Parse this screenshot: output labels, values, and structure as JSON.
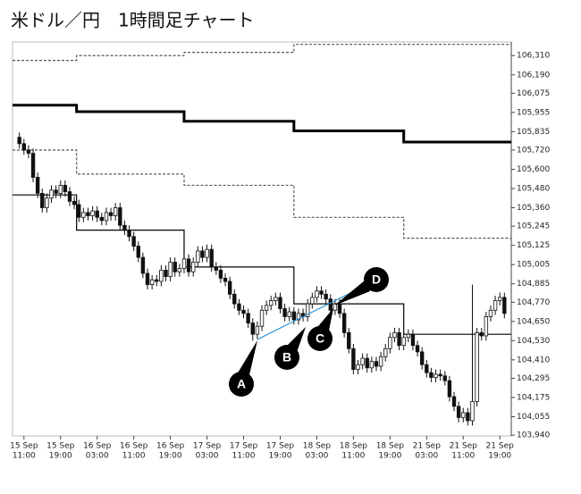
{
  "chart_data": {
    "type": "candlestick",
    "title": "米ドル／円　1時間足チャート",
    "open": [
      105.8,
      105.76,
      105.72,
      105.7,
      105.55,
      105.45,
      105.36,
      105.42,
      105.47,
      105.45,
      105.5,
      105.46,
      105.4,
      105.38,
      105.3,
      105.33,
      105.31,
      105.34,
      105.3,
      105.28,
      105.33,
      105.31,
      105.36,
      105.25,
      105.22,
      105.18,
      105.12,
      105.05,
      104.95,
      104.88,
      104.91,
      104.9,
      104.97,
      104.93,
      105.02,
      104.96,
      104.98,
      105.04,
      104.96,
      105.02,
      105.09,
      105.05,
      105.1,
      104.99,
      104.97,
      104.92,
      104.9,
      104.82,
      104.76,
      104.72,
      104.7,
      104.64,
      104.57,
      104.62,
      104.72,
      104.75,
      104.78,
      104.8,
      104.73,
      104.68,
      104.71,
      104.66,
      104.7,
      104.68,
      104.76,
      104.8,
      104.84,
      104.82,
      104.79,
      104.72,
      104.76,
      104.7,
      104.58,
      104.48,
      104.35,
      104.38,
      104.42,
      104.36,
      104.4,
      104.37,
      104.43,
      104.48,
      104.55,
      104.58,
      104.5,
      104.55,
      104.57,
      104.5,
      104.46,
      104.38,
      104.33,
      104.3,
      104.32,
      104.31,
      104.28,
      104.18,
      104.12,
      104.05,
      104.08,
      104.03,
      104.15,
      104.58,
      104.56,
      104.68,
      104.72,
      104.78,
      104.8
    ],
    "high": [
      105.83,
      105.79,
      105.75,
      105.73,
      105.58,
      105.48,
      105.45,
      105.5,
      105.5,
      105.53,
      105.53,
      105.49,
      105.43,
      105.41,
      105.36,
      105.36,
      105.37,
      105.37,
      105.33,
      105.36,
      105.36,
      105.39,
      105.39,
      105.28,
      105.25,
      105.21,
      105.15,
      105.08,
      104.98,
      104.94,
      104.94,
      105.0,
      105.0,
      105.05,
      105.05,
      105.01,
      105.07,
      105.07,
      105.05,
      105.12,
      105.12,
      105.13,
      105.13,
      105.02,
      105.0,
      104.95,
      104.93,
      104.85,
      104.79,
      104.75,
      104.73,
      104.67,
      104.65,
      104.75,
      104.78,
      104.81,
      104.83,
      104.83,
      104.76,
      104.74,
      104.74,
      104.73,
      104.73,
      104.79,
      104.83,
      104.87,
      104.87,
      104.85,
      104.82,
      104.79,
      104.79,
      104.73,
      104.61,
      104.51,
      104.41,
      104.45,
      104.45,
      104.43,
      104.43,
      104.46,
      104.51,
      104.58,
      104.61,
      104.61,
      104.58,
      104.6,
      104.6,
      104.53,
      104.49,
      104.41,
      104.36,
      104.35,
      104.35,
      104.34,
      104.31,
      104.21,
      104.15,
      104.11,
      104.11,
      104.88,
      104.61,
      104.61,
      104.71,
      104.75,
      104.81,
      104.83,
      104.83
    ],
    "low": [
      105.73,
      105.69,
      105.67,
      105.52,
      105.42,
      105.33,
      105.33,
      105.39,
      105.42,
      105.42,
      105.43,
      105.37,
      105.35,
      105.27,
      105.27,
      105.28,
      105.28,
      105.27,
      105.25,
      105.25,
      105.28,
      105.28,
      105.22,
      105.19,
      105.15,
      105.09,
      105.02,
      104.92,
      104.85,
      104.85,
      104.87,
      104.87,
      104.9,
      104.9,
      104.93,
      104.93,
      104.95,
      104.93,
      104.93,
      104.99,
      105.02,
      105.02,
      104.96,
      104.94,
      104.89,
      104.87,
      104.79,
      104.73,
      104.69,
      104.67,
      104.61,
      104.53,
      104.54,
      104.59,
      104.69,
      104.72,
      104.75,
      104.7,
      104.65,
      104.65,
      104.63,
      104.63,
      104.65,
      104.65,
      104.73,
      104.77,
      104.79,
      104.76,
      104.69,
      104.69,
      104.67,
      104.55,
      104.45,
      104.32,
      104.32,
      104.35,
      104.33,
      104.33,
      104.34,
      104.34,
      104.4,
      104.45,
      104.52,
      104.47,
      104.47,
      104.52,
      104.47,
      104.43,
      104.35,
      104.3,
      104.27,
      104.27,
      104.28,
      104.25,
      104.15,
      104.09,
      104.02,
      104.02,
      104.0,
      104.0,
      104.12,
      104.53,
      104.53,
      104.65,
      104.69,
      104.75,
      104.67
    ],
    "close": [
      105.76,
      105.72,
      105.7,
      105.55,
      105.45,
      105.36,
      105.42,
      105.47,
      105.45,
      105.5,
      105.46,
      105.4,
      105.38,
      105.3,
      105.33,
      105.31,
      105.34,
      105.3,
      105.28,
      105.33,
      105.31,
      105.36,
      105.25,
      105.22,
      105.18,
      105.12,
      105.05,
      104.95,
      104.88,
      104.91,
      104.9,
      104.97,
      104.93,
      105.02,
      104.96,
      104.98,
      105.04,
      104.96,
      105.02,
      105.09,
      105.05,
      105.1,
      104.99,
      104.97,
      104.92,
      104.9,
      104.82,
      104.76,
      104.72,
      104.7,
      104.64,
      104.57,
      104.62,
      104.72,
      104.75,
      104.78,
      104.8,
      104.73,
      104.68,
      104.71,
      104.66,
      104.7,
      104.68,
      104.76,
      104.8,
      104.84,
      104.82,
      104.79,
      104.72,
      104.76,
      104.7,
      104.58,
      104.48,
      104.35,
      104.38,
      104.42,
      104.36,
      104.4,
      104.37,
      104.43,
      104.48,
      104.55,
      104.58,
      104.5,
      104.55,
      104.57,
      104.5,
      104.46,
      104.38,
      104.33,
      104.3,
      104.32,
      104.31,
      104.28,
      104.18,
      104.12,
      104.05,
      104.08,
      104.03,
      104.15,
      104.58,
      104.56,
      104.68,
      104.72,
      104.78,
      104.8,
      104.7
    ],
    "up_color": "#ffffff",
    "down_color": "#111111",
    "lines": [
      {
        "style": "dashed",
        "color": "#555555",
        "x": [
          -1.5,
          12.5,
          36,
          60,
          84,
          107.5
        ],
        "values": [
          106.28,
          106.31,
          106.33,
          106.38,
          106.38,
          106.38
        ]
      },
      {
        "style": "thick",
        "color": "#000000",
        "x": [
          -1.5,
          12.5,
          36,
          60,
          84,
          107.5
        ],
        "values": [
          106.0,
          105.96,
          105.9,
          105.84,
          105.77,
          105.77
        ]
      },
      {
        "style": "dashed",
        "color": "#555555",
        "x": [
          -1.5,
          12.5,
          36,
          60,
          84,
          107.5
        ],
        "values": [
          105.72,
          105.57,
          105.5,
          105.3,
          105.17,
          105.17
        ]
      },
      {
        "style": "solid",
        "color": "#000000",
        "x": [
          -1.5,
          12.5,
          36,
          60,
          84,
          107.5
        ],
        "values": [
          105.44,
          105.22,
          104.99,
          104.76,
          104.57,
          104.57
        ]
      }
    ],
    "xlim": [
      -1.5,
      107.5
    ],
    "xticks": [
      {
        "value": 1,
        "label": [
          "15 Sep",
          "11:00"
        ]
      },
      {
        "value": 9,
        "label": [
          "15 Sep",
          "19:00"
        ]
      },
      {
        "value": 17,
        "label": [
          "16 Sep",
          "03:00"
        ]
      },
      {
        "value": 25,
        "label": [
          "16 Sep",
          "11:00"
        ]
      },
      {
        "value": 33,
        "label": [
          "16 Sep",
          "19:00"
        ]
      },
      {
        "value": 41,
        "label": [
          "17 Sep",
          "03:00"
        ]
      },
      {
        "value": 49,
        "label": [
          "17 Sep",
          "11:00"
        ]
      },
      {
        "value": 57,
        "label": [
          "17 Sep",
          "19:00"
        ]
      },
      {
        "value": 65,
        "label": [
          "18 Sep",
          "03:00"
        ]
      },
      {
        "value": 73,
        "label": [
          "18 Sep",
          "11:00"
        ]
      },
      {
        "value": 81,
        "label": [
          "18 Sep",
          "19:00"
        ]
      },
      {
        "value": 89,
        "label": [
          "21 Sep",
          "03:00"
        ]
      },
      {
        "value": 97,
        "label": [
          "21 Sep",
          "11:00"
        ]
      },
      {
        "value": 105,
        "label": [
          "21 Sep",
          "19:00"
        ]
      }
    ],
    "ylim": [
      103.935,
      106.395
    ],
    "yticks": [
      {
        "value": 106.31,
        "label": "106,310"
      },
      {
        "value": 106.19,
        "label": "106,190"
      },
      {
        "value": 106.075,
        "label": "106,075"
      },
      {
        "value": 105.955,
        "label": "105,955"
      },
      {
        "value": 105.835,
        "label": "105,835"
      },
      {
        "value": 105.72,
        "label": "105,720"
      },
      {
        "value": 105.6,
        "label": "105,600"
      },
      {
        "value": 105.48,
        "label": "105,480"
      },
      {
        "value": 105.36,
        "label": "105,360"
      },
      {
        "value": 105.245,
        "label": "105,245"
      },
      {
        "value": 105.125,
        "label": "105,125"
      },
      {
        "value": 105.005,
        "label": "105,005"
      },
      {
        "value": 104.885,
        "label": "104,885"
      },
      {
        "value": 104.77,
        "label": "104,770"
      },
      {
        "value": 104.65,
        "label": "104,650"
      },
      {
        "value": 104.53,
        "label": "104,530"
      },
      {
        "value": 104.41,
        "label": "104,410"
      },
      {
        "value": 104.295,
        "label": "104,295"
      },
      {
        "value": 104.175,
        "label": "104,175"
      },
      {
        "value": 104.055,
        "label": "104,055"
      },
      {
        "value": 103.94,
        "label": "103,940"
      }
    ],
    "annotations": [
      {
        "label": "A"
      },
      {
        "label": "B"
      },
      {
        "label": "C"
      },
      {
        "label": "D"
      }
    ]
  }
}
